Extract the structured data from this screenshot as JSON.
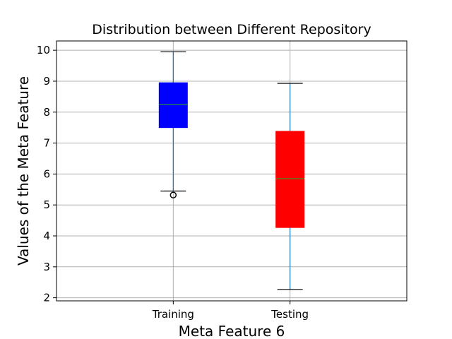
{
  "chart_data": {
    "type": "boxplot",
    "title": "Distribution between Different Repository",
    "xlabel": "Meta Feature 6",
    "ylabel": "Values of the Meta Feature",
    "ylim": [
      1.9,
      10.3
    ],
    "yticks": [
      2,
      3,
      4,
      5,
      6,
      7,
      8,
      9,
      10
    ],
    "grid": true,
    "categories": [
      "Training",
      "Testing"
    ],
    "boxes": [
      {
        "category": "Training",
        "color": "#0000ff",
        "whisker_low": 5.45,
        "q1": 7.5,
        "median": 8.25,
        "q3": 8.95,
        "whisker_high": 9.95,
        "outliers": [
          5.32
        ]
      },
      {
        "category": "Testing",
        "color": "#ff0000",
        "whisker_low": 2.27,
        "q1": 4.27,
        "median": 5.85,
        "q3": 7.38,
        "whisker_high": 8.93,
        "outliers": []
      }
    ],
    "whisker_color": "#1f77b4",
    "median_color": "#2ca02c",
    "outlier_color": "#000000"
  }
}
